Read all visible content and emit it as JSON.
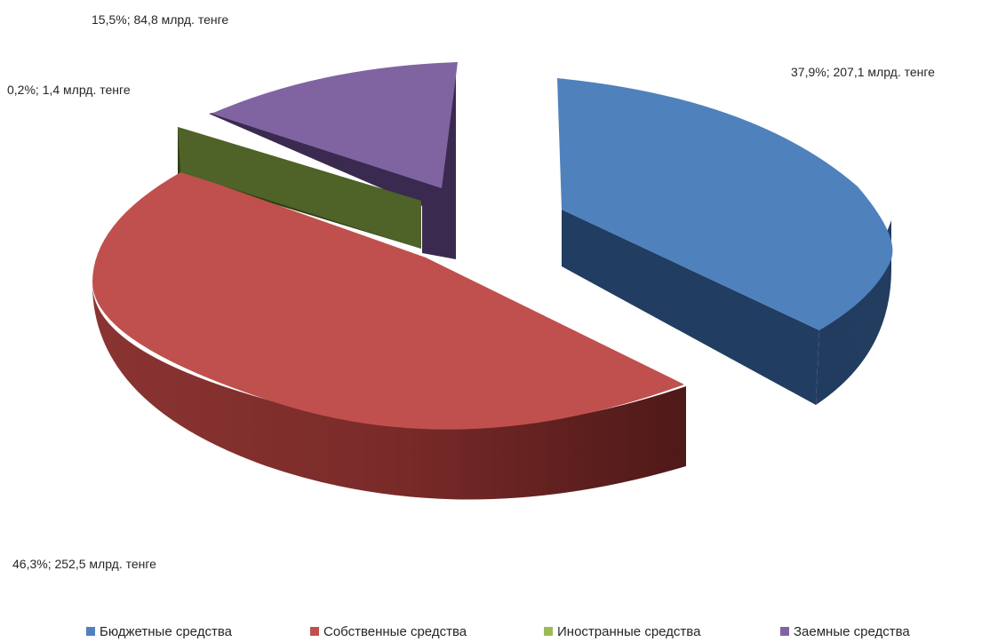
{
  "chart_data": {
    "type": "pie",
    "categories": [
      "Бюджетные средства",
      "Собственные средства",
      "Иностранные средства",
      "Заемные средства"
    ],
    "values": [
      207.1,
      252.5,
      1.4,
      84.8
    ],
    "percents": [
      37.9,
      46.3,
      0.2,
      15.5
    ],
    "data_labels": [
      "37,9%; 207,1 млрд. тенге",
      "46,3%; 252,5 млрд. тенге",
      "0,2%; 1,4 млрд. тенге",
      "15,5%; 84,8 млрд. тенге"
    ],
    "colors": [
      "#4f81bd",
      "#c0504d",
      "#9bbb59",
      "#8064a2"
    ],
    "style": "3d-exploded",
    "legend_position": "bottom"
  }
}
